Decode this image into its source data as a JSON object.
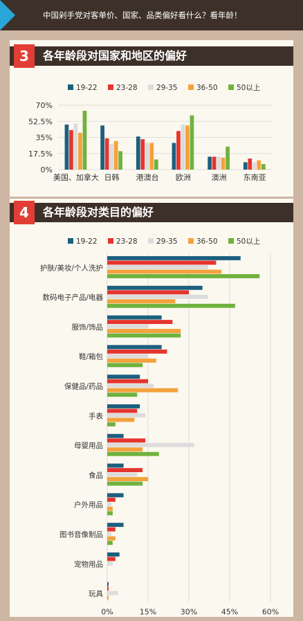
{
  "header": {
    "text": "中国剁手党对客单价、国家、品类偏好看什么？看年龄！"
  },
  "section3": {
    "number": "3",
    "title": "各年龄段对国家和地区的偏好"
  },
  "section4": {
    "number": "4",
    "title": "各年龄段对类目的偏好"
  },
  "colors": {
    "19-22": "#1d5f7f",
    "23-28": "#e5352f",
    "29-35": "#dcdcdc",
    "36-50": "#f4a23c",
    "50以上": "#6fb23e"
  },
  "chart_data": [
    {
      "type": "bar",
      "orientation": "vertical",
      "categories": [
        "美国、加拿大",
        "日韩",
        "港澳台",
        "欧洲",
        "澳洲",
        "东南亚"
      ],
      "series": [
        {
          "name": "19-22",
          "values": [
            49,
            48,
            36,
            29,
            14,
            8
          ]
        },
        {
          "name": "23-28",
          "values": [
            43,
            34,
            33,
            42,
            14,
            12
          ]
        },
        {
          "name": "29-35",
          "values": [
            50,
            28,
            29,
            49,
            14,
            8
          ]
        },
        {
          "name": "36-50",
          "values": [
            40,
            31,
            29,
            48,
            13,
            10
          ]
        },
        {
          "name": "50以上",
          "values": [
            64,
            20,
            11,
            59,
            25,
            6
          ]
        }
      ],
      "ylim": [
        0,
        70
      ],
      "yticks": [
        "70%",
        "52.5%",
        "35%",
        "17.5%",
        "0%"
      ],
      "grid": true,
      "legend": "top"
    },
    {
      "type": "bar",
      "orientation": "horizontal",
      "categories": [
        "护肤/美妆/个人洗护",
        "数码电子产品/电器",
        "服饰/饰品",
        "鞋/箱包",
        "保健品/药品",
        "手表",
        "母婴用品",
        "食品",
        "户外用品",
        "图书音像制品",
        "宠物用品",
        "玩具"
      ],
      "series": [
        {
          "name": "19-22",
          "values": [
            49,
            35,
            20,
            20,
            12,
            12,
            6,
            6,
            6,
            6,
            4.5,
            0.5
          ]
        },
        {
          "name": "23-28",
          "values": [
            40,
            30,
            24,
            22,
            15,
            11,
            14,
            13,
            3,
            3,
            3,
            0.5
          ]
        },
        {
          "name": "29-35",
          "values": [
            37,
            37,
            15,
            15,
            17,
            14,
            32,
            11,
            1.5,
            1.5,
            2,
            4
          ]
        },
        {
          "name": "36-50",
          "values": [
            42,
            25,
            27,
            18,
            26,
            10,
            13,
            15,
            2,
            3,
            0,
            0.5
          ]
        },
        {
          "name": "50以上",
          "values": [
            56,
            47,
            27,
            13,
            11,
            3,
            19,
            13,
            2,
            2,
            0,
            0
          ]
        }
      ],
      "xlim": [
        0,
        60
      ],
      "xticks": [
        "0%",
        "15%",
        "30%",
        "45%",
        "60%"
      ],
      "grid": true,
      "legend": "top"
    }
  ]
}
